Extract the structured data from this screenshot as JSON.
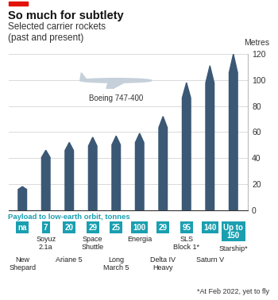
{
  "chart_data": {
    "type": "bar",
    "title": "So much for subtlety",
    "subtitle": "Selected carrier rockets\n(past and present)",
    "y_label": "Metres",
    "categories": [
      "New Shepard",
      "Soyuz 2.1a",
      "Ariane 5",
      "Space Shuttle",
      "Long March 5",
      "Energia",
      "Delta IV Heavy",
      "SLS Block 1*",
      "Saturn V",
      "Starship*"
    ],
    "values": [
      18,
      46,
      52,
      56,
      57,
      59,
      72,
      98,
      111,
      120
    ],
    "color": "#3b5875",
    "ylim": [
      0,
      120
    ],
    "yticks": [
      0,
      20,
      40,
      60,
      80,
      100,
      120
    ],
    "grid": true,
    "annotations": [
      "Boeing 747-400"
    ],
    "payload_title": "Payload to low-earth orbit, tonnes",
    "payload": [
      "na",
      7,
      20,
      29,
      25,
      100,
      29,
      95,
      140,
      "Up to 150"
    ],
    "footnote": "*At Feb 2022, yet to fly"
  }
}
